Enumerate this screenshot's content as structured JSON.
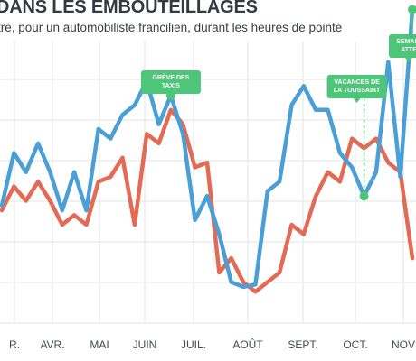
{
  "header": {
    "title": "DANS LES EMBOUTEILLAGES",
    "subtitle": "tre, pour un automobiliste francilien, durant les heures de pointe"
  },
  "colors": {
    "blue": "#4a9fd6",
    "red": "#e36a55",
    "annotation": "#4ec67a",
    "grid": "#e2e4e6"
  },
  "chart_data": {
    "type": "line",
    "title": "DANS LES EMBOUTEILLAGES",
    "subtitle": "tre, pour un automobiliste francilien, durant les heures de pointe",
    "xlabel": "",
    "ylabel": "",
    "x_ticks": [
      "R.",
      "AVR.",
      "MAI",
      "JUIN",
      "JUIL.",
      "AOÛT",
      "SEPT.",
      "OCT.",
      "NOV"
    ],
    "x_range": [
      0,
      34
    ],
    "ylim": [
      0,
      6
    ],
    "grid": true,
    "legend": "none",
    "series": [
      {
        "color": "#4a9fd6",
        "x": [
          0,
          1,
          2,
          3,
          4,
          5,
          6,
          7,
          8,
          9,
          10,
          11,
          12,
          13,
          14,
          15,
          16,
          17,
          18,
          19,
          20,
          21,
          22,
          23,
          24,
          25,
          26,
          27,
          28,
          29,
          30,
          31,
          32,
          33,
          34
        ],
        "values": [
          2.4,
          3.5,
          3.1,
          3.7,
          3.1,
          2.3,
          3.1,
          2.3,
          4.0,
          3.8,
          4.3,
          4.5,
          5.0,
          4.1,
          4.7,
          3.9,
          2.1,
          2.6,
          1.8,
          0.8,
          0.7,
          0.75,
          2.7,
          2.9,
          4.5,
          4.9,
          4.4,
          4.4,
          3.5,
          3.2,
          2.6,
          3.1,
          5.4,
          3.0,
          6.5
        ]
      },
      {
        "color": "#e36a55",
        "x": [
          0,
          1,
          2,
          3,
          4,
          5,
          6,
          7,
          8,
          9,
          10,
          11,
          12,
          13,
          14,
          15,
          16,
          17,
          18,
          19,
          20,
          21,
          22,
          23,
          24,
          25,
          26,
          27,
          28,
          29,
          30,
          31,
          32,
          33,
          34
        ],
        "values": [
          2.3,
          2.8,
          2.5,
          2.9,
          2.5,
          2.0,
          2.2,
          2.0,
          2.9,
          3.0,
          3.4,
          2.0,
          3.9,
          3.7,
          4.4,
          4.1,
          3.2,
          3.3,
          1.0,
          1.3,
          0.8,
          0.6,
          0.8,
          1.0,
          2.0,
          1.8,
          2.6,
          3.1,
          2.9,
          3.8,
          3.6,
          3.8,
          3.3,
          3.1,
          1.3
        ]
      }
    ],
    "annotations": [
      {
        "lines": [
          "GRÈVE DES",
          "TAXIS"
        ],
        "x": 14
      },
      {
        "lines": [
          "VACANCES DE",
          "LA TOUSSAINT"
        ],
        "x": 30
      },
      {
        "lines": [
          "SEMAIN",
          "ATTE"
        ],
        "x": 34
      }
    ]
  }
}
